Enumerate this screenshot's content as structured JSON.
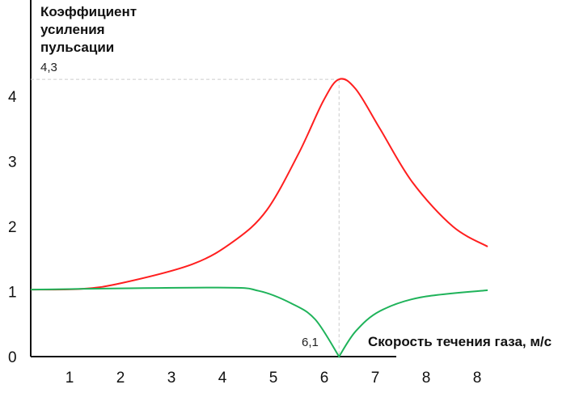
{
  "chart_data": {
    "type": "line",
    "ylabel_lines": [
      "Коэффициент",
      "усиления",
      "пульсации"
    ],
    "xlabel": "Скорость течения газа, м/с",
    "x_tick_labels": [
      "1",
      "2",
      "3",
      "4",
      "5",
      "6",
      "7",
      "8",
      "8"
    ],
    "y_tick_labels": [
      "0",
      "1",
      "2",
      "3",
      "4"
    ],
    "y_ticks": [
      0,
      1,
      2,
      3,
      4
    ],
    "ylim": [
      0,
      5.5
    ],
    "xlim": [
      0,
      10.7
    ],
    "grid": false,
    "annotations": {
      "peak_y_label": "4,3",
      "peak_x_label": "6,1",
      "peak_x": 6.1,
      "peak_y": 4.26
    },
    "series": [
      {
        "color": "#ff1f1f",
        "x": [
          0,
          1,
          1.8,
          3.2,
          4.03,
          4.67,
          5.3,
          5.79,
          6.1,
          6.43,
          6.91,
          7.55,
          8.35,
          9.04
        ],
        "y": [
          1.03,
          1.04,
          1.13,
          1.42,
          1.78,
          2.25,
          3.12,
          3.93,
          4.26,
          4.11,
          3.5,
          2.68,
          2.0,
          1.69
        ]
      },
      {
        "color": "#1fb35a",
        "x": [
          0,
          3.71,
          4.51,
          5.15,
          5.63,
          6.1,
          6.43,
          6.91,
          7.71,
          9.04
        ],
        "y": [
          1.03,
          1.06,
          1.01,
          0.82,
          0.57,
          0,
          0.39,
          0.7,
          0.91,
          1.02
        ]
      }
    ]
  }
}
